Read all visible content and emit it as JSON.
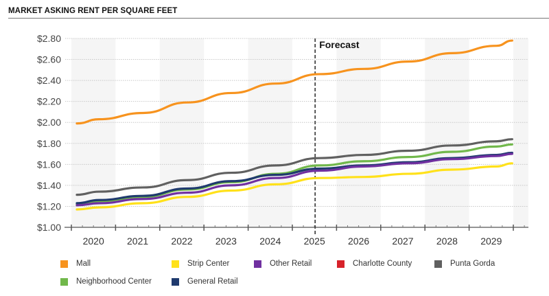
{
  "chart_data": {
    "type": "line",
    "title": "MARKET ASKING RENT PER SQUARE FEET",
    "xlabel": "",
    "ylabel": "",
    "ylim": [
      1.0,
      2.8
    ],
    "yticks": [
      1.0,
      1.2,
      1.4,
      1.6,
      1.8,
      2.0,
      2.2,
      2.4,
      2.6,
      2.8
    ],
    "ytick_labels": [
      "$1.00",
      "$1.20",
      "$1.40",
      "$1.60",
      "$1.80",
      "$2.00",
      "$2.20",
      "$2.40",
      "$2.60",
      "$2.80"
    ],
    "categories": [
      "2020",
      "2021",
      "2022",
      "2023",
      "2024",
      "2025",
      "2026",
      "2027",
      "2028",
      "2029"
    ],
    "x": [
      2020.0,
      2020.5,
      2021.5,
      2022.5,
      2023.5,
      2024.5,
      2025.5,
      2026.5,
      2027.5,
      2028.5,
      2029.5,
      2029.85
    ],
    "forecast_start": 2025.5,
    "forecast_label": "Forecast",
    "grid": true,
    "legend_position": "bottom",
    "series": [
      {
        "name": "Mall",
        "color": "#F7931E",
        "values": [
          1.99,
          2.03,
          2.09,
          2.19,
          2.28,
          2.37,
          2.46,
          2.51,
          2.58,
          2.66,
          2.73,
          2.78
        ]
      },
      {
        "name": "Strip Center",
        "color": "#FFE11A",
        "values": [
          1.17,
          1.19,
          1.23,
          1.29,
          1.35,
          1.41,
          1.47,
          1.48,
          1.51,
          1.55,
          1.58,
          1.61
        ]
      },
      {
        "name": "Other Retail",
        "color": "#7030A0",
        "values": [
          1.21,
          1.23,
          1.27,
          1.33,
          1.4,
          1.47,
          1.54,
          1.58,
          1.61,
          1.65,
          1.68,
          1.7
        ]
      },
      {
        "name": "Charlotte County",
        "color": "#D7222A",
        "values": []
      },
      {
        "name": "Punta Gorda",
        "color": "#606060",
        "values": [
          1.31,
          1.34,
          1.38,
          1.45,
          1.52,
          1.59,
          1.66,
          1.69,
          1.73,
          1.78,
          1.82,
          1.84
        ]
      },
      {
        "name": "Neighborhood Center",
        "color": "#71B84B",
        "values": [
          1.22,
          1.25,
          1.29,
          1.36,
          1.43,
          1.51,
          1.59,
          1.63,
          1.67,
          1.72,
          1.77,
          1.79
        ]
      },
      {
        "name": "General Retail",
        "color": "#1F3A6E",
        "values": [
          1.23,
          1.26,
          1.3,
          1.37,
          1.44,
          1.5,
          1.56,
          1.59,
          1.62,
          1.66,
          1.69,
          1.71
        ]
      }
    ],
    "legend": [
      {
        "name": "Mall",
        "color": "#F7931E"
      },
      {
        "name": "Strip Center",
        "color": "#FFE11A"
      },
      {
        "name": "Other Retail",
        "color": "#7030A0"
      },
      {
        "name": "Charlotte County",
        "color": "#D7222A"
      },
      {
        "name": "Punta Gorda",
        "color": "#606060"
      },
      {
        "name": "Neighborhood Center",
        "color": "#71B84B"
      },
      {
        "name": "General Retail",
        "color": "#1F3A6E"
      }
    ]
  }
}
